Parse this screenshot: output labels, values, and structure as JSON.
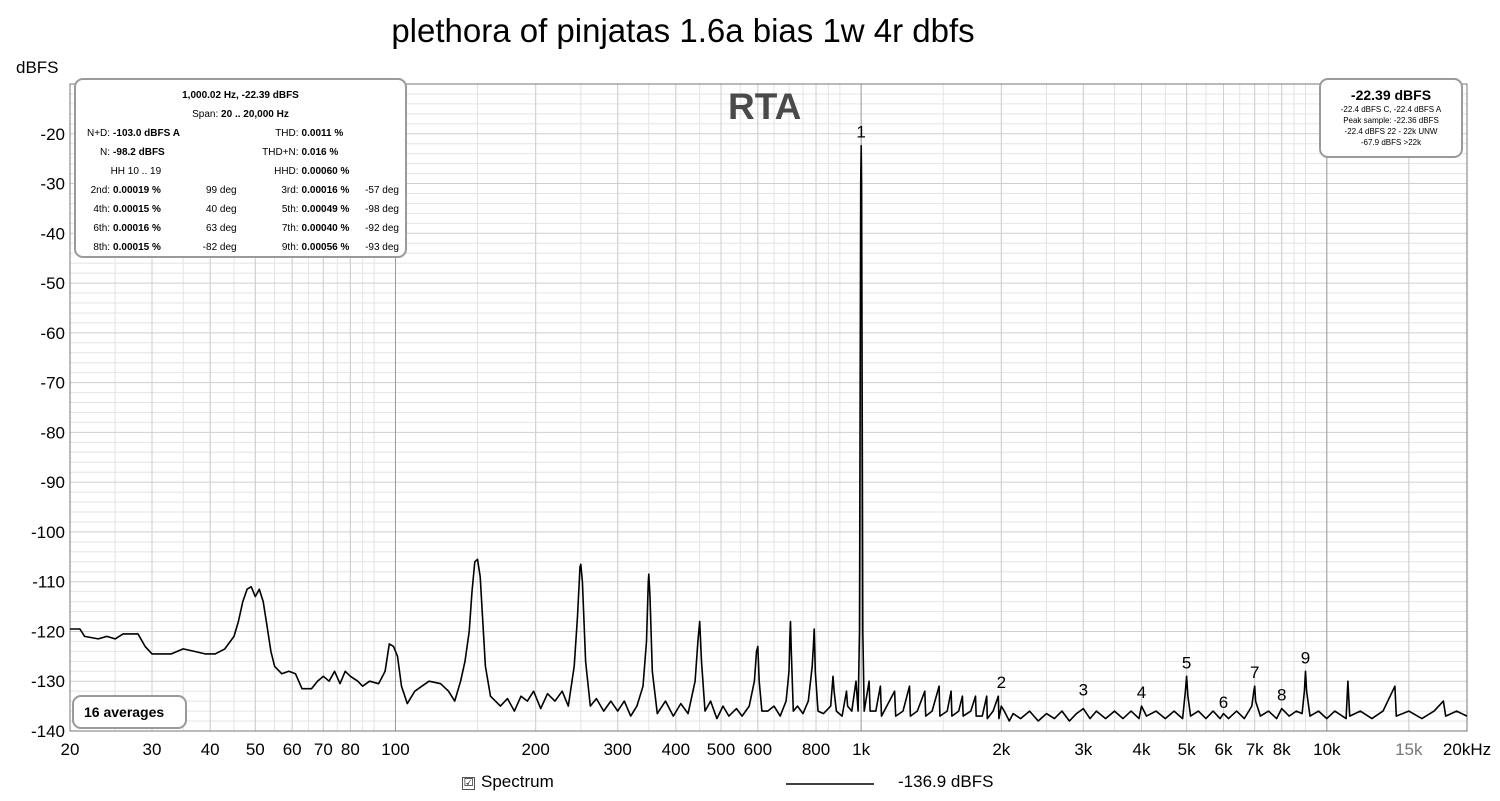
{
  "title": "plethora of pinjatas 1.6a bias 1w 4r dbfs",
  "y_unit_label": "dBFS",
  "rta_label": "RTA",
  "info_box": {
    "header": "1,000.02 Hz, -22.39 dBFS",
    "span_label": "Span:",
    "span_value": "20 .. 20,000 Hz",
    "nd_label": "N+D:",
    "nd_value": "-103.0 dBFS A",
    "thd_label": "THD:",
    "thd_value": "0.0011 %",
    "n_label": "N:",
    "n_value": "-98.2 dBFS",
    "thdn_label": "THD+N:",
    "thdn_value": "0.016 %",
    "hh_label": "HH 10 .. 19",
    "hhd_label": "HHD:",
    "hhd_value": "0.00060 %",
    "harmonics": [
      {
        "l1": "2nd:",
        "v1": "0.00019 %",
        "d1": "99 deg",
        "l2": "3rd:",
        "v2": "0.00016 %",
        "d2": "-57 deg"
      },
      {
        "l1": "4th:",
        "v1": "0.00015 %",
        "d1": "40 deg",
        "l2": "5th:",
        "v2": "0.00049 %",
        "d2": "-98 deg"
      },
      {
        "l1": "6th:",
        "v1": "0.00016 %",
        "d1": "63 deg",
        "l2": "7th:",
        "v2": "0.00040 %",
        "d2": "-92 deg"
      },
      {
        "l1": "8th:",
        "v1": "0.00015 %",
        "d1": "-82 deg",
        "l2": "9th:",
        "v2": "0.00056 %",
        "d2": "-93 deg"
      }
    ]
  },
  "level_box": {
    "main": "-22.39 dBFS",
    "line1": "-22.4 dBFS C, -22.4 dBFS A",
    "line2": "Peak sample: -22.36 dBFS",
    "line3": "-22.4 dBFS 22 - 22k UNW",
    "line4": "-67.9 dBFS >22k"
  },
  "averages_label": "16 averages",
  "legend": {
    "checkbox_mark": "☑",
    "series_label": "Spectrum",
    "value_label": "-136.9 dBFS"
  },
  "colors": {
    "trace": "#000000",
    "grid_minor": "#e4e4e4",
    "grid_major": "#b0b0b0",
    "box_border": "#9a9a9a",
    "rta_text": "#4a4a4a"
  },
  "chart_data": {
    "type": "line",
    "x_scale": "log",
    "xlim": [
      20,
      20000
    ],
    "ylim": [
      -140,
      -10
    ],
    "grid": true,
    "y_ticks": [
      -20,
      -30,
      -40,
      -50,
      -60,
      -70,
      -80,
      -90,
      -100,
      -110,
      -120,
      -130,
      -140
    ],
    "x_ticks": [
      {
        "v": 20,
        "t": "20"
      },
      {
        "v": 30,
        "t": "30"
      },
      {
        "v": 40,
        "t": "40"
      },
      {
        "v": 50,
        "t": "50"
      },
      {
        "v": 60,
        "t": "60"
      },
      {
        "v": 70,
        "t": "70"
      },
      {
        "v": 80,
        "t": "80"
      },
      {
        "v": 100,
        "t": "100"
      },
      {
        "v": 200,
        "t": "200"
      },
      {
        "v": 300,
        "t": "300"
      },
      {
        "v": 400,
        "t": "400"
      },
      {
        "v": 500,
        "t": "500"
      },
      {
        "v": 600,
        "t": "600"
      },
      {
        "v": 800,
        "t": "800"
      },
      {
        "v": 1000,
        "t": "1k"
      },
      {
        "v": 2000,
        "t": "2k"
      },
      {
        "v": 3000,
        "t": "3k"
      },
      {
        "v": 4000,
        "t": "4k"
      },
      {
        "v": 5000,
        "t": "5k"
      },
      {
        "v": 6000,
        "t": "6k"
      },
      {
        "v": 7000,
        "t": "7k"
      },
      {
        "v": 8000,
        "t": "8k"
      },
      {
        "v": 10000,
        "t": "10k"
      },
      {
        "v": 15000,
        "t": "15k"
      },
      {
        "v": 20000,
        "t": "20kHz"
      }
    ],
    "harmonic_markers": [
      {
        "label": "1",
        "x": 1000,
        "y": -22.4
      },
      {
        "label": "2",
        "x": 2000,
        "y": -133
      },
      {
        "label": "3",
        "x": 3000,
        "y": -134.5
      },
      {
        "label": "4",
        "x": 4000,
        "y": -135
      },
      {
        "label": "5",
        "x": 5000,
        "y": -129
      },
      {
        "label": "6",
        "x": 6000,
        "y": -137
      },
      {
        "label": "7",
        "x": 7000,
        "y": -131
      },
      {
        "label": "8",
        "x": 8000,
        "y": -135.5
      },
      {
        "label": "9",
        "x": 9000,
        "y": -128
      }
    ],
    "series": [
      {
        "points": [
          [
            20,
            -119.5
          ],
          [
            21,
            -119.5
          ],
          [
            21.5,
            -121
          ],
          [
            23,
            -121.5
          ],
          [
            24,
            -121
          ],
          [
            25,
            -121.5
          ],
          [
            26,
            -120.5
          ],
          [
            28,
            -120.5
          ],
          [
            29,
            -123
          ],
          [
            30,
            -124.5
          ],
          [
            33,
            -124.5
          ],
          [
            35,
            -123.5
          ],
          [
            37,
            -124
          ],
          [
            39,
            -124.5
          ],
          [
            41,
            -124.5
          ],
          [
            43,
            -123.5
          ],
          [
            45,
            -121
          ],
          [
            46,
            -118
          ],
          [
            47,
            -114
          ],
          [
            48,
            -111.5
          ],
          [
            49,
            -111
          ],
          [
            50,
            -113
          ],
          [
            51,
            -111.5
          ],
          [
            52,
            -114
          ],
          [
            53,
            -119
          ],
          [
            54,
            -124
          ],
          [
            55,
            -127
          ],
          [
            57,
            -128.5
          ],
          [
            59,
            -128
          ],
          [
            61,
            -128.5
          ],
          [
            63,
            -131.5
          ],
          [
            66,
            -131.5
          ],
          [
            68,
            -130
          ],
          [
            70,
            -129
          ],
          [
            72,
            -130
          ],
          [
            74,
            -128
          ],
          [
            76,
            -130.5
          ],
          [
            78,
            -128
          ],
          [
            80,
            -129
          ],
          [
            83,
            -130
          ],
          [
            85,
            -131
          ],
          [
            88,
            -130
          ],
          [
            92,
            -130.5
          ],
          [
            95,
            -128
          ],
          [
            97,
            -122.5
          ],
          [
            99,
            -123
          ],
          [
            101,
            -125
          ],
          [
            103,
            -131
          ],
          [
            106,
            -134.5
          ],
          [
            110,
            -132
          ],
          [
            118,
            -130
          ],
          [
            125,
            -130.5
          ],
          [
            130,
            -132
          ],
          [
            134,
            -134
          ],
          [
            138,
            -130
          ],
          [
            141,
            -126
          ],
          [
            144,
            -120
          ],
          [
            146,
            -112
          ],
          [
            148,
            -106
          ],
          [
            150,
            -105.5
          ],
          [
            152,
            -109
          ],
          [
            154,
            -118
          ],
          [
            156,
            -127
          ],
          [
            160,
            -133
          ],
          [
            168,
            -135
          ],
          [
            174,
            -133.5
          ],
          [
            180,
            -136
          ],
          [
            186,
            -133
          ],
          [
            192,
            -134
          ],
          [
            198,
            -132
          ],
          [
            205,
            -135.5
          ],
          [
            212,
            -132.5
          ],
          [
            220,
            -134
          ],
          [
            228,
            -132
          ],
          [
            235,
            -135
          ],
          [
            242,
            -127
          ],
          [
            246,
            -117
          ],
          [
            249,
            -107
          ],
          [
            250,
            -106.5
          ],
          [
            252,
            -110
          ],
          [
            256,
            -126
          ],
          [
            262,
            -135
          ],
          [
            270,
            -133.5
          ],
          [
            280,
            -136
          ],
          [
            290,
            -134
          ],
          [
            300,
            -136
          ],
          [
            310,
            -134
          ],
          [
            320,
            -137
          ],
          [
            330,
            -135
          ],
          [
            340,
            -131
          ],
          [
            346,
            -122
          ],
          [
            349,
            -110
          ],
          [
            350,
            -108.5
          ],
          [
            352,
            -113
          ],
          [
            356,
            -128
          ],
          [
            365,
            -136.5
          ],
          [
            380,
            -134
          ],
          [
            395,
            -137
          ],
          [
            410,
            -134.5
          ],
          [
            425,
            -136.5
          ],
          [
            440,
            -130
          ],
          [
            446,
            -122
          ],
          [
            450,
            -118
          ],
          [
            454,
            -126
          ],
          [
            462,
            -136
          ],
          [
            475,
            -134
          ],
          [
            490,
            -137.5
          ],
          [
            505,
            -135
          ],
          [
            520,
            -137
          ],
          [
            540,
            -135.5
          ],
          [
            555,
            -137
          ],
          [
            575,
            -135
          ],
          [
            590,
            -130
          ],
          [
            596,
            -124
          ],
          [
            600,
            -123
          ],
          [
            604,
            -130
          ],
          [
            612,
            -136
          ],
          [
            630,
            -136
          ],
          [
            650,
            -135
          ],
          [
            670,
            -137
          ],
          [
            690,
            -134
          ],
          [
            700,
            -128
          ],
          [
            703,
            -121
          ],
          [
            705,
            -118
          ],
          [
            708,
            -124
          ],
          [
            715,
            -136
          ],
          [
            730,
            -135
          ],
          [
            750,
            -136.5
          ],
          [
            770,
            -134
          ],
          [
            785,
            -127
          ],
          [
            790,
            -122.5
          ],
          [
            793,
            -119.5
          ],
          [
            797,
            -128
          ],
          [
            808,
            -136
          ],
          [
            830,
            -136.5
          ],
          [
            860,
            -135
          ],
          [
            870,
            -129
          ],
          [
            875,
            -132
          ],
          [
            885,
            -136
          ],
          [
            910,
            -137
          ],
          [
            930,
            -132
          ],
          [
            935,
            -135
          ],
          [
            955,
            -136
          ],
          [
            975,
            -130
          ],
          [
            985,
            -136
          ],
          [
            992,
            -120
          ],
          [
            996,
            -60
          ],
          [
            998,
            -30
          ],
          [
            1000,
            -22.4
          ],
          [
            1002,
            -30
          ],
          [
            1004,
            -60
          ],
          [
            1008,
            -120
          ],
          [
            1015,
            -136
          ],
          [
            1040,
            -130
          ],
          [
            1045,
            -136
          ],
          [
            1075,
            -136
          ],
          [
            1100,
            -131
          ],
          [
            1106,
            -137
          ],
          [
            1150,
            -134
          ],
          [
            1180,
            -132
          ],
          [
            1186,
            -137
          ],
          [
            1230,
            -136
          ],
          [
            1270,
            -131
          ],
          [
            1276,
            -137
          ],
          [
            1320,
            -136
          ],
          [
            1370,
            -132
          ],
          [
            1376,
            -137
          ],
          [
            1420,
            -136
          ],
          [
            1470,
            -131
          ],
          [
            1476,
            -137
          ],
          [
            1530,
            -136
          ],
          [
            1560,
            -132
          ],
          [
            1566,
            -137
          ],
          [
            1620,
            -136
          ],
          [
            1650,
            -133
          ],
          [
            1656,
            -137
          ],
          [
            1720,
            -136
          ],
          [
            1760,
            -133
          ],
          [
            1766,
            -137
          ],
          [
            1820,
            -137
          ],
          [
            1860,
            -133
          ],
          [
            1866,
            -137.5
          ],
          [
            1920,
            -136
          ],
          [
            1970,
            -133
          ],
          [
            1976,
            -137.5
          ],
          [
            2000,
            -135
          ],
          [
            2030,
            -136
          ],
          [
            2080,
            -138
          ],
          [
            2120,
            -136.5
          ],
          [
            2200,
            -137.5
          ],
          [
            2300,
            -136
          ],
          [
            2400,
            -138
          ],
          [
            2500,
            -136.5
          ],
          [
            2600,
            -137.5
          ],
          [
            2700,
            -136
          ],
          [
            2800,
            -138
          ],
          [
            2900,
            -136.5
          ],
          [
            3000,
            -135.5
          ],
          [
            3100,
            -137.5
          ],
          [
            3200,
            -136
          ],
          [
            3350,
            -137.5
          ],
          [
            3500,
            -136
          ],
          [
            3650,
            -137.5
          ],
          [
            3800,
            -136
          ],
          [
            3950,
            -137.5
          ],
          [
            4000,
            -135
          ],
          [
            4100,
            -137
          ],
          [
            4300,
            -136
          ],
          [
            4500,
            -137.5
          ],
          [
            4700,
            -136
          ],
          [
            4900,
            -137.5
          ],
          [
            4970,
            -132
          ],
          [
            5000,
            -129
          ],
          [
            5030,
            -133
          ],
          [
            5100,
            -137
          ],
          [
            5300,
            -136
          ],
          [
            5500,
            -137.5
          ],
          [
            5700,
            -136
          ],
          [
            5900,
            -137.5
          ],
          [
            6000,
            -136.5
          ],
          [
            6150,
            -137.5
          ],
          [
            6400,
            -136
          ],
          [
            6650,
            -137.5
          ],
          [
            6900,
            -135
          ],
          [
            6970,
            -132
          ],
          [
            7000,
            -131
          ],
          [
            7030,
            -134
          ],
          [
            7200,
            -137
          ],
          [
            7500,
            -136
          ],
          [
            7800,
            -137.5
          ],
          [
            8000,
            -135.5
          ],
          [
            8300,
            -137
          ],
          [
            8600,
            -136
          ],
          [
            8850,
            -136.5
          ],
          [
            8950,
            -132
          ],
          [
            9000,
            -128
          ],
          [
            9050,
            -132
          ],
          [
            9200,
            -137
          ],
          [
            9600,
            -136
          ],
          [
            10000,
            -137.5
          ],
          [
            10400,
            -136
          ],
          [
            11000,
            -137.5
          ],
          [
            11100,
            -130
          ],
          [
            11200,
            -137
          ],
          [
            11800,
            -136
          ],
          [
            12500,
            -137.5
          ],
          [
            13200,
            -136
          ],
          [
            14000,
            -131
          ],
          [
            14100,
            -137
          ],
          [
            15000,
            -136
          ],
          [
            16000,
            -137.5
          ],
          [
            17000,
            -136
          ],
          [
            17800,
            -134
          ],
          [
            18000,
            -137
          ],
          [
            19000,
            -136
          ],
          [
            20000,
            -137
          ]
        ]
      }
    ]
  }
}
